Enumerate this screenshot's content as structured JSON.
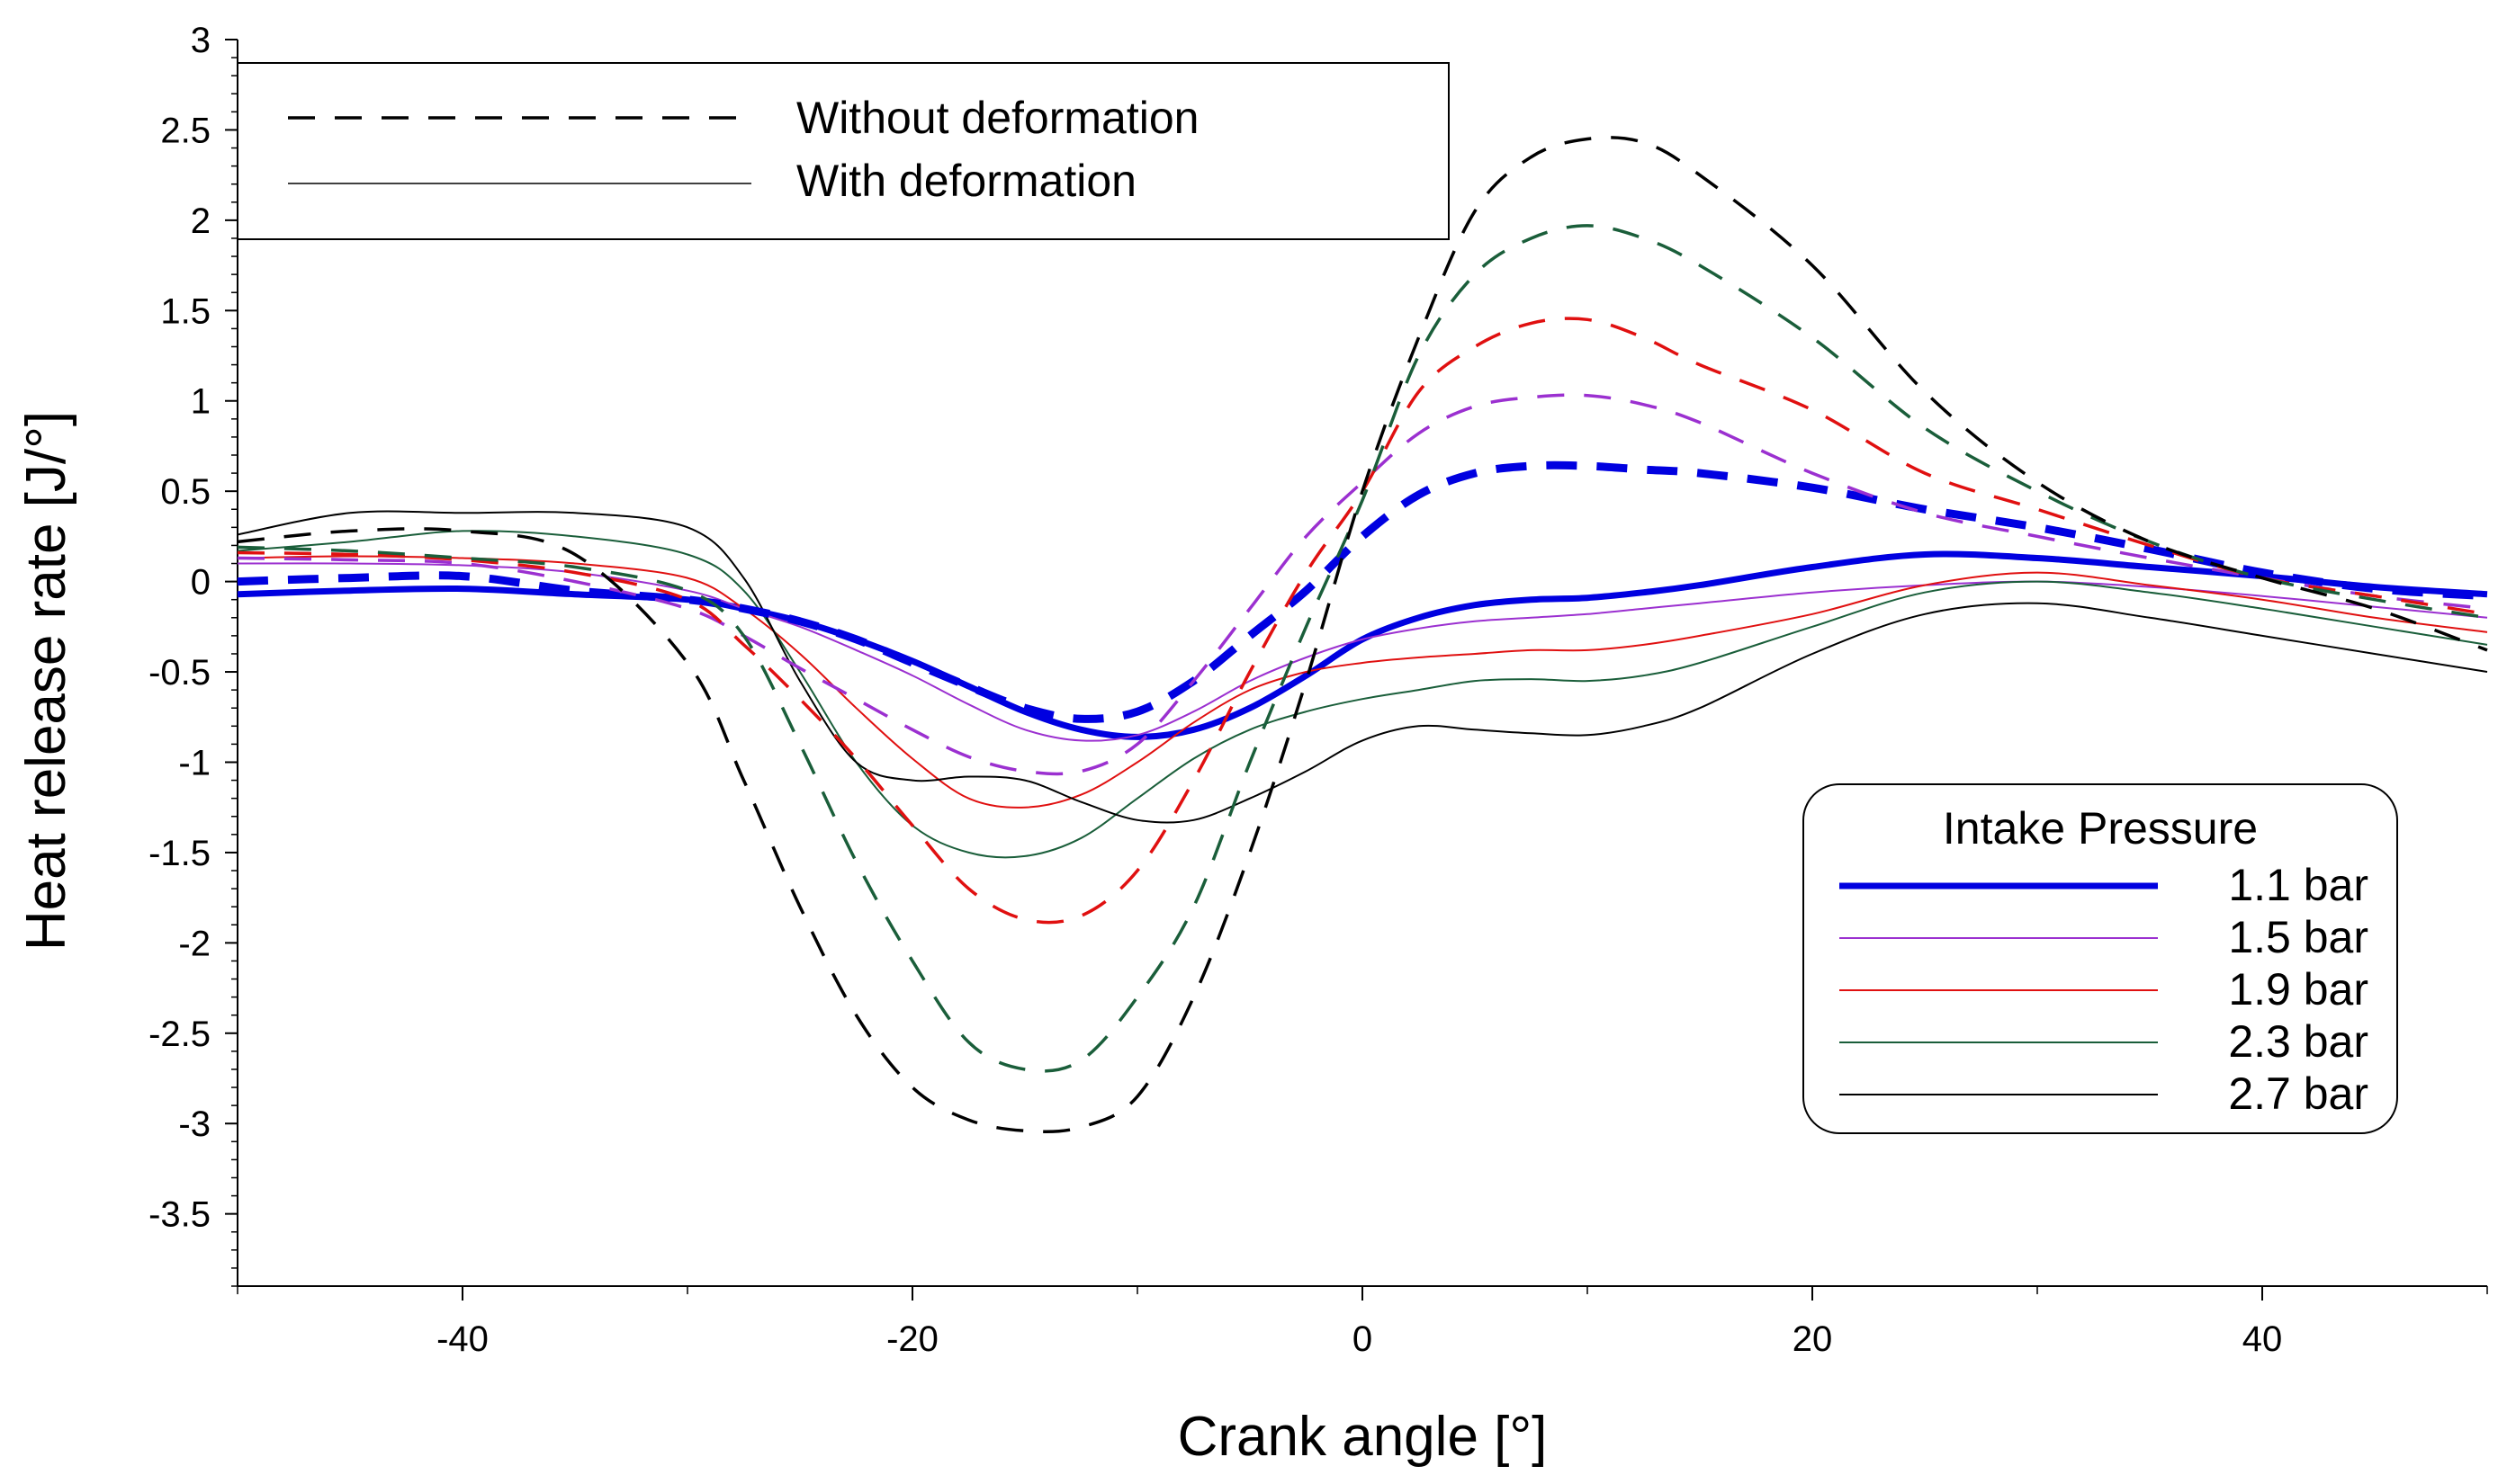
{
  "chart_data": {
    "type": "line",
    "title": "",
    "xlabel": "Crank angle [°]",
    "ylabel": "Heat release rate [J/°]",
    "xlim": [
      -50,
      50
    ],
    "ylim": [
      -3.9,
      3
    ],
    "x_ticks": [
      -40,
      -20,
      0,
      20,
      40
    ],
    "y_ticks": [
      3,
      2.5,
      2,
      1.5,
      1,
      0.5,
      0,
      -0.5,
      -1,
      -1.5,
      -2,
      -2.5,
      -3,
      -3.5
    ],
    "grid": false,
    "style_legend": {
      "placement": "top-left",
      "entries": [
        {
          "label": "Without deformation",
          "style": "dashed"
        },
        {
          "label": "With deformation",
          "style": "solid"
        }
      ]
    },
    "pressure_legend": {
      "title": "Intake Pressure",
      "placement": "bottom-right",
      "entries": [
        {
          "label": "1.1 bar",
          "color": "#0000e0"
        },
        {
          "label": "1.5 bar",
          "color": "#9b30d0"
        },
        {
          "label": "1.9 bar",
          "color": "#e01010"
        },
        {
          "label": "2.3 bar",
          "color": "#1a5e3a"
        },
        {
          "label": "2.7 bar",
          "color": "#000000"
        }
      ]
    },
    "x": [
      -50,
      -45,
      -40,
      -35,
      -30,
      -27.5,
      -25,
      -22.5,
      -20,
      -17.5,
      -15,
      -12.5,
      -10,
      -7.5,
      -5,
      -2.5,
      0,
      2.5,
      5,
      7.5,
      10,
      12.5,
      15,
      20,
      25,
      30,
      35,
      40,
      45,
      50
    ],
    "series": [
      {
        "pressure": "1.1 bar",
        "deformation": "without",
        "color": "#0000e0",
        "width": 9,
        "values": [
          0,
          0.02,
          0.03,
          -0.05,
          -0.1,
          -0.15,
          -0.22,
          -0.32,
          -0.45,
          -0.58,
          -0.7,
          -0.76,
          -0.72,
          -0.55,
          -0.3,
          -0.05,
          0.25,
          0.48,
          0.6,
          0.64,
          0.64,
          0.62,
          0.6,
          0.52,
          0.4,
          0.3,
          0.18,
          0.05,
          -0.04,
          -0.08
        ]
      },
      {
        "pressure": "1.5 bar",
        "deformation": "without",
        "color": "#9b30d0",
        "width": 3.5,
        "values": [
          0.13,
          0.12,
          0.1,
          0,
          -0.15,
          -0.3,
          -0.48,
          -0.65,
          -0.82,
          -0.97,
          -1.05,
          -1.05,
          -0.9,
          -0.55,
          -0.15,
          0.25,
          0.55,
          0.82,
          0.97,
          1.02,
          1.03,
          0.98,
          0.88,
          0.6,
          0.38,
          0.25,
          0.13,
          0.02,
          -0.08,
          -0.15
        ]
      },
      {
        "pressure": "1.9 bar",
        "deformation": "without",
        "color": "#e01010",
        "width": 3.5,
        "values": [
          0.16,
          0.15,
          0.12,
          0.05,
          -0.1,
          -0.35,
          -0.65,
          -0.98,
          -1.35,
          -1.7,
          -1.87,
          -1.85,
          -1.6,
          -1.1,
          -0.5,
          0.05,
          0.5,
          1.05,
          1.3,
          1.43,
          1.45,
          1.35,
          1.2,
          0.95,
          0.6,
          0.4,
          0.2,
          0.02,
          -0.08,
          -0.18
        ]
      },
      {
        "pressure": "2.3 bar",
        "deformation": "without",
        "color": "#1a5e3a",
        "width": 3.5,
        "values": [
          0.19,
          0.17,
          0.13,
          0.08,
          -0.05,
          -0.3,
          -0.9,
          -1.55,
          -2.1,
          -2.55,
          -2.7,
          -2.65,
          -2.3,
          -1.8,
          -1.0,
          -0.25,
          0.45,
          1.25,
          1.7,
          1.9,
          1.97,
          1.9,
          1.75,
          1.35,
          0.85,
          0.5,
          0.22,
          0.02,
          -0.1,
          -0.2
        ]
      },
      {
        "pressure": "2.7 bar",
        "deformation": "without",
        "color": "#000000",
        "width": 3.5,
        "values": [
          0.22,
          0.28,
          0.28,
          0.15,
          -0.45,
          -1.1,
          -1.8,
          -2.4,
          -2.8,
          -2.98,
          -3.04,
          -3.02,
          -2.85,
          -2.3,
          -1.5,
          -0.55,
          0.5,
          1.35,
          2.05,
          2.35,
          2.45,
          2.43,
          2.25,
          1.75,
          1.05,
          0.55,
          0.22,
          0.02,
          -0.15,
          -0.38
        ]
      },
      {
        "pressure": "1.1 bar",
        "deformation": "with",
        "color": "#0000e0",
        "width": 7,
        "values": [
          -0.07,
          -0.05,
          -0.04,
          -0.07,
          -0.1,
          -0.15,
          -0.22,
          -0.32,
          -0.44,
          -0.58,
          -0.72,
          -0.82,
          -0.86,
          -0.82,
          -0.7,
          -0.52,
          -0.32,
          -0.2,
          -0.13,
          -0.1,
          -0.09,
          -0.06,
          -0.02,
          0.08,
          0.15,
          0.13,
          0.08,
          0.03,
          -0.03,
          -0.07
        ]
      },
      {
        "pressure": "1.5 bar",
        "deformation": "with",
        "color": "#9b30d0",
        "width": 2,
        "values": [
          0.1,
          0.1,
          0.09,
          0.05,
          -0.05,
          -0.15,
          -0.25,
          -0.38,
          -0.52,
          -0.68,
          -0.82,
          -0.88,
          -0.85,
          -0.72,
          -0.55,
          -0.42,
          -0.32,
          -0.26,
          -0.22,
          -0.2,
          -0.18,
          -0.15,
          -0.12,
          -0.06,
          -0.02,
          0,
          -0.03,
          -0.08,
          -0.14,
          -0.2
        ]
      },
      {
        "pressure": "1.9 bar",
        "deformation": "with",
        "color": "#e01010",
        "width": 2,
        "values": [
          0.13,
          0.14,
          0.13,
          0.1,
          0.02,
          -0.15,
          -0.4,
          -0.7,
          -0.98,
          -1.2,
          -1.25,
          -1.18,
          -1.0,
          -0.78,
          -0.6,
          -0.5,
          -0.45,
          -0.42,
          -0.4,
          -0.38,
          -0.38,
          -0.35,
          -0.3,
          -0.18,
          -0.02,
          0.05,
          -0.02,
          -0.1,
          -0.2,
          -0.28
        ]
      },
      {
        "pressure": "2.3 bar",
        "deformation": "with",
        "color": "#1a5e3a",
        "width": 2,
        "values": [
          0.17,
          0.22,
          0.28,
          0.25,
          0.15,
          -0.05,
          -0.5,
          -1.0,
          -1.35,
          -1.5,
          -1.52,
          -1.42,
          -1.2,
          -0.98,
          -0.82,
          -0.72,
          -0.65,
          -0.6,
          -0.55,
          -0.54,
          -0.55,
          -0.52,
          -0.45,
          -0.25,
          -0.06,
          0,
          -0.06,
          -0.15,
          -0.25,
          -0.35
        ]
      },
      {
        "pressure": "2.7 bar",
        "deformation": "with",
        "color": "#000000",
        "width": 2,
        "values": [
          0.26,
          0.38,
          0.38,
          0.38,
          0.3,
          0.02,
          -0.55,
          -1.0,
          -1.1,
          -1.08,
          -1.1,
          -1.22,
          -1.32,
          -1.32,
          -1.2,
          -1.05,
          -0.88,
          -0.8,
          -0.82,
          -0.84,
          -0.85,
          -0.8,
          -0.7,
          -0.4,
          -0.18,
          -0.12,
          -0.2,
          -0.3,
          -0.4,
          -0.5
        ]
      }
    ]
  }
}
